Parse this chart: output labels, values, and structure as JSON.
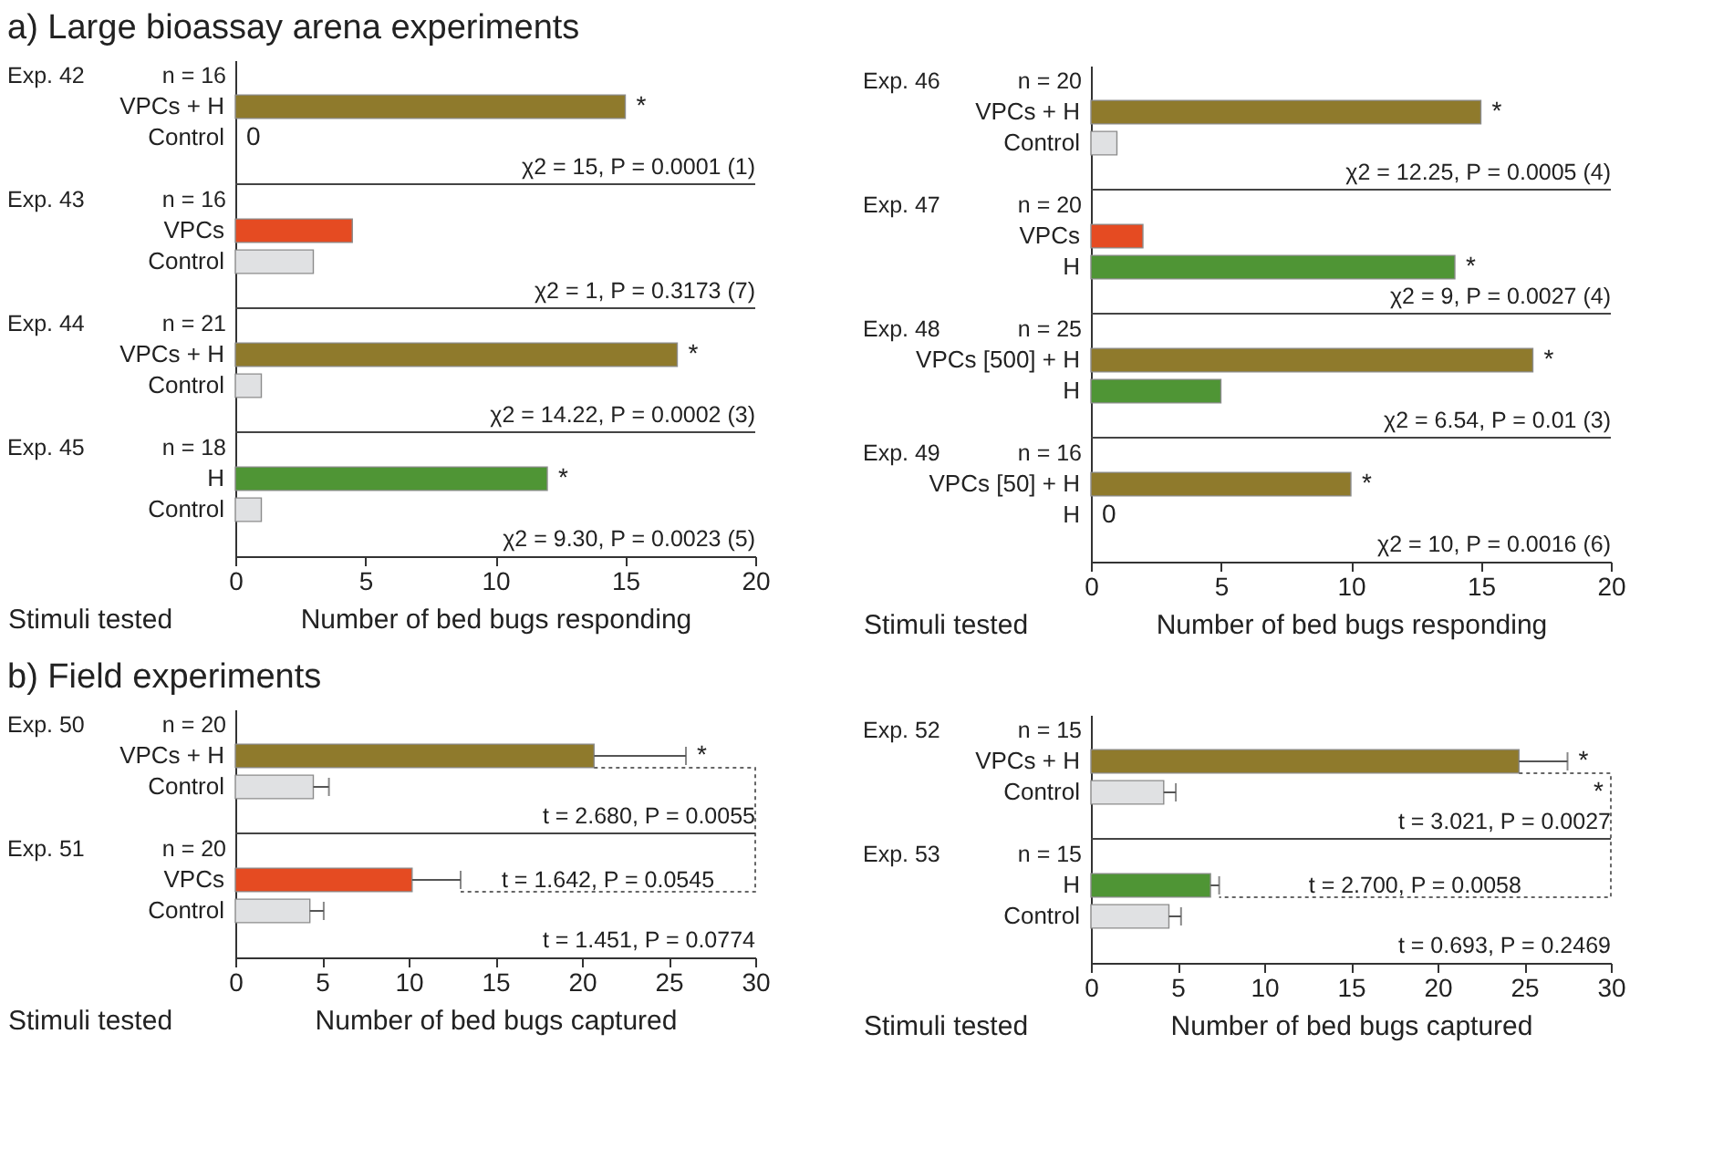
{
  "chart_data": [
    {
      "type": "bar",
      "orientation": "horizontal",
      "title": "a)  Large bioassay arena experiments",
      "xlabel": "Number of bed bugs responding",
      "ylabel": "Stimuli tested",
      "categories": [
        "VPCs + H",
        "Control",
        "VPCs",
        "Control",
        "VPCs + H",
        "Control",
        "H",
        "Control"
      ],
      "values": [
        15,
        0,
        4.5,
        3,
        17,
        1,
        12,
        1
      ],
      "colors": [
        "#8f7a2c",
        "#e0e1e3",
        "#e54b22",
        "#e0e1e3",
        "#8f7a2c",
        "#e0e1e3",
        "#4f9535",
        "#e0e1e3"
      ],
      "value_labels": [
        "*",
        "0",
        null,
        null,
        "*",
        null,
        "*",
        null
      ],
      "xlim": [
        0,
        20
      ],
      "xticks": [
        0,
        5,
        10,
        15,
        20
      ],
      "annotations": [
        "Exp. 42",
        "n = 16",
        "χ2 = 15, P = 0.0001  (1)",
        "Exp. 43",
        "n = 16",
        "χ2 = 1, P = 0.3173  (7)",
        "Exp. 44",
        "n = 21",
        "χ2 = 14.22, P = 0.0002  (3)",
        "Exp. 45",
        "n = 18",
        "χ2 = 9.30, P = 0.0023  (5)"
      ]
    },
    {
      "type": "bar",
      "orientation": "horizontal",
      "xlabel": "Number of bed bugs responding",
      "ylabel": "Stimuli tested",
      "categories": [
        "VPCs + H",
        "Control",
        "VPCs",
        "H",
        "VPCs [500] + H",
        "H",
        "VPCs [50] + H",
        "H"
      ],
      "values": [
        15,
        1,
        2,
        14,
        17,
        5,
        10,
        0
      ],
      "colors": [
        "#8f7a2c",
        "#e0e1e3",
        "#e54b22",
        "#4f9535",
        "#8f7a2c",
        "#4f9535",
        "#8f7a2c",
        "#4f9535"
      ],
      "value_labels": [
        "*",
        null,
        null,
        "*",
        "*",
        null,
        "*",
        "0"
      ],
      "xlim": [
        0,
        20
      ],
      "xticks": [
        0,
        5,
        10,
        15,
        20
      ],
      "annotations": [
        "Exp. 46",
        "n = 20",
        "χ2 = 12.25, P = 0.0005  (4)",
        "Exp. 47",
        "n = 20",
        "χ2 = 9, P = 0.0027  (4)",
        "Exp. 48",
        "n = 25",
        "χ2 = 6.54, P = 0.01  (3)",
        "Exp. 49",
        "n = 16",
        "χ2 = 10, P = 0.0016  (6)"
      ]
    },
    {
      "type": "bar",
      "orientation": "horizontal",
      "title": "b)  Field experiments",
      "xlabel": "Number of bed bugs captured",
      "ylabel": "Stimuli tested",
      "categories": [
        "VPCs + H",
        "Control",
        "VPCs",
        "Control"
      ],
      "values": [
        20.7,
        4.5,
        10.2,
        4.3
      ],
      "errors": [
        [
          20.7,
          26.0
        ],
        [
          4.5,
          5.4
        ],
        [
          10.2,
          13.0
        ],
        [
          4.3,
          5.1
        ]
      ],
      "colors": [
        "#8f7a2c",
        "#e0e1e3",
        "#e54b22",
        "#e0e1e3"
      ],
      "xlim": [
        0,
        30
      ],
      "xticks": [
        0,
        5,
        10,
        15,
        20,
        25,
        30
      ],
      "annotations": [
        "Exp. 50",
        "n = 20",
        "t = 2.680, P = 0.0055",
        "Exp. 51",
        "n = 20",
        "t = 1.451, P = 0.0774",
        "t = 1.642, P = 0.0545",
        {
          "text": "*",
          "x": 26.0,
          "y": "VPCs + H"
        }
      ]
    },
    {
      "type": "bar",
      "orientation": "horizontal",
      "xlabel": "Number of bed bugs captured",
      "ylabel": "Stimuli tested",
      "categories": [
        "VPCs + H",
        "Control",
        "H",
        "Control"
      ],
      "values": [
        24.7,
        4.2,
        6.9,
        4.5
      ],
      "errors": [
        [
          24.7,
          27.5
        ],
        [
          4.2,
          4.9
        ],
        [
          6.9,
          7.4
        ],
        [
          4.5,
          5.2
        ]
      ],
      "colors": [
        "#8f7a2c",
        "#e0e1e3",
        "#4f9535",
        "#e0e1e3"
      ],
      "xlim": [
        0,
        30
      ],
      "xticks": [
        0,
        5,
        10,
        15,
        20,
        25,
        30
      ],
      "annotations": [
        "Exp. 52",
        "n = 15",
        "t = 3.021, P = 0.0027",
        "Exp. 53",
        "n = 15",
        "t = 0.693, P = 0.2469",
        "*",
        "t = 2.700, P = 0.0058",
        {
          "text": "*",
          "x": 27.5,
          "y": "VPCs + H"
        }
      ]
    }
  ]
}
